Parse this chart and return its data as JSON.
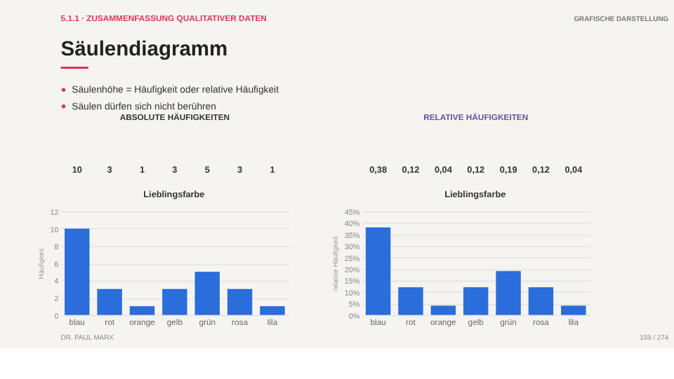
{
  "chart_data": [
    {
      "type": "bar",
      "title": "Säulendiagramm",
      "subtitle": "ABSOLUTE HÄUFIGKEITEN",
      "xlabel": "Lieblingsfarbe",
      "ylabel": "Häufigkeit",
      "annotations": [
        "5.1.1 · ZUSAMMENFASSUNG QUALITATIVER DATEN",
        "GRAFISCHE DARSTELLUNG",
        "Säulenhöhe = Häufigkeit oder relative Häufigkeit",
        "Säulen dürfen sich nicht berühren",
        "DR. PAUL MARX",
        "159 / 274"
      ],
      "categories": [
        "blau",
        "rot",
        "orange",
        "gelb",
        "grün",
        "rosa",
        "lila"
      ],
      "values": [
        10,
        3,
        1,
        3,
        5,
        3,
        1
      ],
      "color": "#2a6ddb",
      "data_labels": true,
      "ylim": [
        0,
        12
      ],
      "yticks": [
        0,
        2,
        4,
        6,
        8,
        10,
        12
      ],
      "grid": "y"
    },
    {
      "type": "bar",
      "subtitle": "RELATIVE HÄUFIGKEITEN",
      "xlabel": "Lieblingsfarbe",
      "ylabel": "relative Häufigkeit",
      "categories": [
        "blau",
        "rot",
        "orange",
        "gelb",
        "grün",
        "rosa",
        "lila"
      ],
      "values": [
        0.38,
        0.12,
        0.04,
        0.12,
        0.19,
        0.12,
        0.04
      ],
      "color": "#2a6ddb",
      "value_labels": [
        "0,38",
        "0,12",
        "0,04",
        "0,12",
        "0,19",
        "0,12",
        "0,04"
      ],
      "ylim": [
        0,
        0.45
      ],
      "yticks": [
        {
          "value": 0,
          "label": "0%"
        },
        {
          "value": 0.05,
          "label": "5%"
        },
        {
          "value": 0.1,
          "label": "10%"
        },
        {
          "value": 0.15,
          "label": "15%"
        },
        {
          "value": 0.2,
          "label": "20%"
        },
        {
          "value": 0.25,
          "label": "25%"
        },
        {
          "value": 0.3,
          "label": "30%"
        },
        {
          "value": 0.35,
          "label": "35%"
        },
        {
          "value": 0.4,
          "label": "40%"
        },
        {
          "value": 0.45,
          "label": "45%"
        }
      ],
      "grid": "y"
    }
  ]
}
